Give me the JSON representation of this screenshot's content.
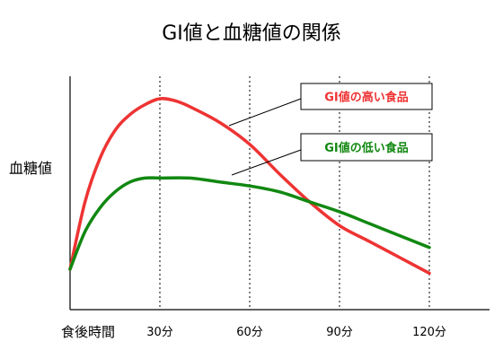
{
  "chart_data": {
    "type": "line",
    "title": "GI値と血糖値の関係",
    "ylabel": "血糖値",
    "xlabel": "食後時間",
    "x_ticks": [
      "30分",
      "60分",
      "90分",
      "120分"
    ],
    "x_tick_values": [
      30,
      60,
      90,
      120
    ],
    "xlim": [
      0,
      140
    ],
    "ylim": [
      0,
      100
    ],
    "grid": "vertical dotted lines at ticks",
    "series": [
      {
        "name": "GI値の高い食品",
        "color": "#ee3333",
        "x": [
          0,
          5,
          10,
          15,
          20,
          25,
          30,
          35,
          40,
          50,
          60,
          70,
          80,
          90,
          100,
          110,
          120
        ],
        "y": [
          14,
          48,
          70,
          84,
          92,
          97,
          100,
          99,
          96,
          88,
          77,
          62,
          48,
          36,
          28,
          20,
          12
        ]
      },
      {
        "name": "GI値の低い食品",
        "color": "#118811",
        "x": [
          0,
          5,
          10,
          15,
          20,
          25,
          30,
          40,
          50,
          60,
          70,
          80,
          90,
          100,
          110,
          120
        ],
        "y": [
          14,
          33,
          45,
          53,
          58,
          60,
          60,
          60,
          58,
          56,
          53,
          48,
          43,
          37,
          31,
          25
        ]
      }
    ]
  }
}
